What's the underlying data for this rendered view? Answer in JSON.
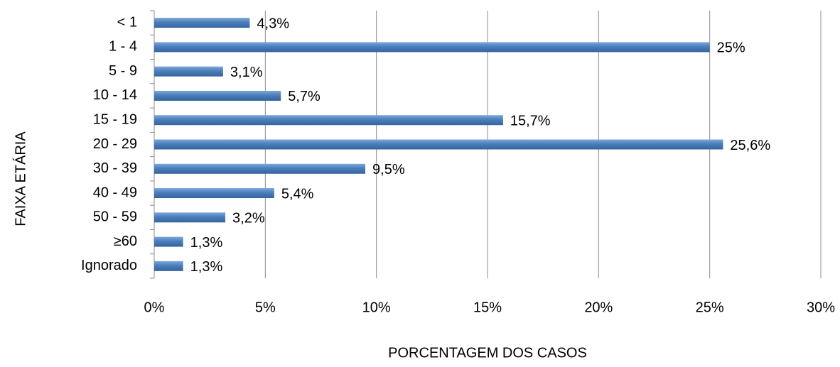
{
  "chart_data": {
    "type": "bar",
    "orientation": "horizontal",
    "x_label": "PORCENTAGEM DOS CASOS",
    "y_label": "FAIXA ETÁRIA",
    "categories": [
      "< 1",
      "1 - 4",
      "5 - 9",
      "10 - 14",
      "15 - 19",
      "20 - 29",
      "30 - 39",
      "40 - 49",
      "50 - 59",
      "≥60",
      "Ignorado"
    ],
    "values": [
      4.3,
      25,
      3.1,
      5.7,
      15.7,
      25.6,
      9.5,
      5.4,
      3.2,
      1.3,
      1.3
    ],
    "value_labels": [
      "4,3%",
      "25%",
      "3,1%",
      "5,7%",
      "15,7%",
      "25,6%",
      "9,5%",
      "5,4%",
      "3,2%",
      "1,3%",
      "1,3%"
    ],
    "color": "#4a7ebb",
    "xlim": [
      0,
      30
    ],
    "xticks": [
      {
        "value": 0,
        "label": "0%"
      },
      {
        "value": 5,
        "label": "5%"
      },
      {
        "value": 10,
        "label": "10%"
      },
      {
        "value": 15,
        "label": "15%"
      },
      {
        "value": 20,
        "label": "20%"
      },
      {
        "value": 25,
        "label": "25%"
      },
      {
        "value": 30,
        "label": "30%"
      }
    ],
    "grid": true
  }
}
